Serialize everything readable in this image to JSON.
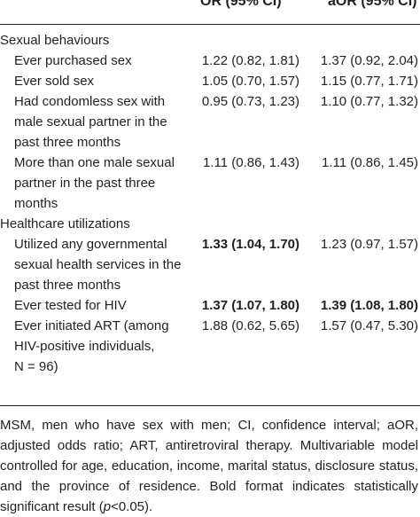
{
  "table": {
    "headers": {
      "or": "OR (95% CI)",
      "aor": "aOR (95% CI)"
    },
    "rows": [
      {
        "type": "section",
        "lines": [
          "Sexual behaviours"
        ]
      },
      {
        "type": "item",
        "lines": [
          "Ever purchased sex"
        ],
        "or": "1.22 (0.82, 1.81)",
        "aor": "1.37 (0.92, 2.04)",
        "or_bold": false,
        "aor_bold": false
      },
      {
        "type": "item",
        "lines": [
          "Ever sold sex"
        ],
        "or": "1.05 (0.70, 1.57)",
        "aor": "1.15 (0.77, 1.71)",
        "or_bold": false,
        "aor_bold": false
      },
      {
        "type": "item",
        "lines": [
          "Had condomless sex with",
          "male sexual partner in the",
          "past three months"
        ],
        "or": "0.95 (0.73, 1.23)",
        "aor": "1.10 (0.77, 1.32)",
        "or_bold": false,
        "aor_bold": false
      },
      {
        "type": "item",
        "lines": [
          "More than one male sexual",
          "partner in the past three",
          "months"
        ],
        "or": "1.11 (0.86, 1.43)",
        "aor": "1.11 (0.86, 1.45)",
        "or_bold": false,
        "aor_bold": false
      },
      {
        "type": "section",
        "lines": [
          "Healthcare utilizations"
        ]
      },
      {
        "type": "item",
        "lines": [
          "Utilized any governmental",
          "sexual health services in the",
          "past three months"
        ],
        "or": "1.33 (1.04, 1.70)",
        "aor": "1.23 (0.97, 1.57)",
        "or_bold": true,
        "aor_bold": false
      },
      {
        "type": "item",
        "lines": [
          "Ever tested for HIV"
        ],
        "or": "1.37 (1.07, 1.80)",
        "aor": "1.39 (1.08, 1.80)",
        "or_bold": true,
        "aor_bold": true
      },
      {
        "type": "item",
        "lines": [
          "Ever initiated ART (among",
          "HIV-positive individuals,",
          "N = 96)"
        ],
        "or": "1.88 (0.62, 5.65)",
        "aor": "1.57 (0.47, 5.30)",
        "or_bold": false,
        "aor_bold": false
      }
    ]
  },
  "footnote": {
    "before_p": "MSM, men who have sex with men; CI, confidence interval; aOR, adjusted odds ratio; ART, antiretroviral therapy. Multivariable model controlled for age, education, income, marital status, disclosure status, and the province of residence. Bold format indicates statistically significant result (",
    "p": "p",
    "after_p": "<0.05)."
  }
}
